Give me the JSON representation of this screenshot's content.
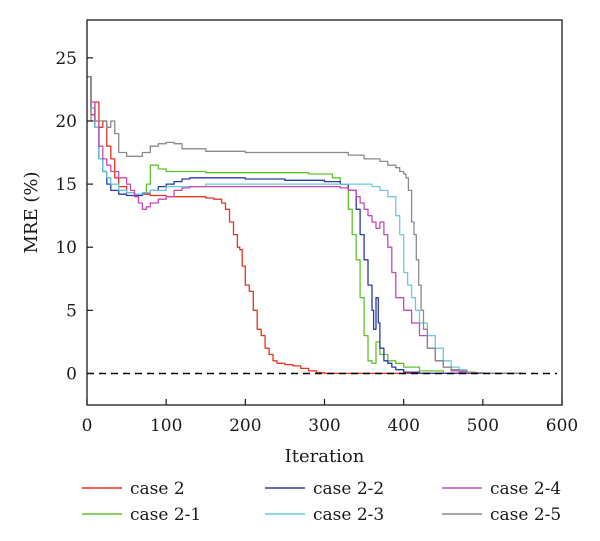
{
  "chart_data": {
    "type": "line",
    "xlabel": "Iteration",
    "ylabel": "MRE (%)",
    "xlim": [
      0,
      600
    ],
    "ylim": [
      -2.5,
      28
    ],
    "xticks": [
      0,
      100,
      200,
      300,
      400,
      500,
      600
    ],
    "yticks": [
      0,
      5,
      10,
      15,
      20,
      25
    ],
    "grid": false,
    "legend_position": "bottom",
    "reference_line": {
      "y": 0,
      "style": "dashed",
      "color": "#000000",
      "x_range": [
        0,
        600
      ]
    },
    "series": [
      {
        "name": "case 2",
        "color": "#e8321e",
        "x": [
          0,
          5,
          10,
          15,
          20,
          25,
          30,
          35,
          40,
          50,
          60,
          70,
          80,
          90,
          100,
          110,
          120,
          130,
          140,
          150,
          160,
          170,
          175,
          180,
          185,
          190,
          193,
          196,
          200,
          205,
          210,
          215,
          220,
          225,
          230,
          235,
          240,
          250,
          260,
          270,
          280,
          290,
          300,
          350,
          400,
          450,
          500,
          550
        ],
        "y": [
          23.5,
          20.5,
          21.5,
          19.5,
          20,
          18,
          17,
          15.5,
          14.8,
          14.3,
          14.2,
          14.2,
          14.1,
          14.1,
          14,
          14,
          14,
          14,
          14,
          13.9,
          13.8,
          13.5,
          13,
          12,
          11,
          10,
          9.8,
          8.5,
          7,
          6.5,
          5,
          3.5,
          3,
          2,
          1.5,
          1,
          0.8,
          0.7,
          0.6,
          0.4,
          0.2,
          0.05,
          0,
          0,
          0,
          0,
          0,
          0
        ]
      },
      {
        "name": "case 2-1",
        "color": "#5ec22d",
        "x": [
          0,
          5,
          10,
          15,
          20,
          25,
          30,
          40,
          50,
          60,
          70,
          75,
          80,
          90,
          100,
          120,
          150,
          200,
          250,
          280,
          300,
          310,
          320,
          330,
          335,
          340,
          345,
          350,
          355,
          360,
          365,
          370,
          380,
          390,
          400,
          420,
          450,
          500,
          550
        ],
        "y": [
          23.5,
          21,
          19.5,
          17,
          16,
          15.5,
          15,
          14.5,
          14.3,
          14.2,
          14.3,
          15,
          16.5,
          16.2,
          16,
          16,
          15.9,
          15.9,
          15.9,
          15.8,
          15.8,
          15.5,
          15,
          13,
          11,
          9,
          6,
          3,
          1,
          0.8,
          2.5,
          1.5,
          1,
          0.8,
          0.5,
          0.2,
          0,
          0,
          0
        ]
      },
      {
        "name": "case 2-2",
        "color": "#2b3aa8",
        "x": [
          0,
          5,
          10,
          15,
          20,
          25,
          30,
          40,
          50,
          60,
          70,
          80,
          90,
          100,
          110,
          120,
          130,
          140,
          150,
          200,
          250,
          300,
          320,
          330,
          340,
          345,
          350,
          355,
          360,
          362,
          365,
          368,
          370,
          375,
          380,
          385,
          390,
          400,
          420,
          450,
          500,
          550
        ],
        "y": [
          23.5,
          21,
          19.5,
          17,
          16,
          15,
          14.5,
          14.2,
          14.1,
          14.1,
          14.3,
          14.5,
          14.8,
          15,
          15.2,
          15.4,
          15.5,
          15.5,
          15.5,
          15.4,
          15.3,
          15.2,
          15,
          14.5,
          13,
          11,
          9,
          7,
          5,
          3.5,
          6,
          4,
          2,
          1,
          0.8,
          0.5,
          0.3,
          0.1,
          0,
          0,
          0,
          0
        ]
      },
      {
        "name": "case 2-3",
        "color": "#6bc9e0",
        "x": [
          0,
          5,
          10,
          15,
          20,
          25,
          30,
          40,
          50,
          60,
          70,
          80,
          100,
          150,
          200,
          250,
          300,
          340,
          360,
          370,
          380,
          390,
          395,
          400,
          405,
          410,
          415,
          420,
          430,
          440,
          450,
          460,
          470,
          480,
          490,
          500,
          550
        ],
        "y": [
          23.5,
          21,
          19.5,
          17,
          16,
          15.5,
          15,
          14.5,
          14.3,
          14.2,
          14.3,
          14.5,
          14.8,
          15,
          15,
          15,
          15,
          15,
          14.8,
          14.5,
          14,
          12.5,
          11,
          8,
          7,
          6,
          5,
          4,
          3,
          2,
          1,
          0.5,
          0.3,
          0.1,
          0.05,
          0,
          0
        ]
      },
      {
        "name": "case 2-4",
        "color": "#c84ab1",
        "x": [
          0,
          5,
          10,
          15,
          20,
          25,
          30,
          40,
          50,
          55,
          60,
          65,
          70,
          75,
          80,
          90,
          100,
          110,
          120,
          130,
          140,
          150,
          200,
          250,
          300,
          320,
          330,
          340,
          345,
          350,
          355,
          360,
          365,
          370,
          375,
          380,
          385,
          390,
          400,
          410,
          420,
          430,
          440,
          450,
          460,
          470,
          480,
          500,
          550
        ],
        "y": [
          23.5,
          21.5,
          20,
          18,
          17,
          16.5,
          16,
          15.5,
          15,
          14.5,
          14,
          13.5,
          13,
          13.2,
          13.5,
          13.8,
          14,
          14.5,
          14.7,
          14.8,
          14.8,
          14.8,
          14.8,
          14.8,
          14.8,
          14.7,
          14.5,
          14,
          13.5,
          13,
          12.5,
          12,
          11.5,
          12,
          11,
          10,
          8,
          6,
          5,
          4,
          3,
          2,
          1,
          0.5,
          0.2,
          0.1,
          0.05,
          0,
          0
        ]
      },
      {
        "name": "case 2-5",
        "color": "#8a8a8a",
        "x": [
          0,
          5,
          10,
          15,
          20,
          25,
          30,
          35,
          40,
          50,
          60,
          70,
          80,
          90,
          100,
          110,
          120,
          150,
          200,
          250,
          300,
          330,
          350,
          370,
          380,
          390,
          395,
          400,
          403,
          406,
          410,
          413,
          416,
          419,
          422,
          425,
          430,
          440,
          450,
          460,
          470,
          480,
          490,
          500,
          550
        ],
        "y": [
          23.5,
          20,
          20,
          20,
          20,
          19.5,
          20,
          19,
          17.5,
          17.2,
          17.2,
          17.5,
          18,
          18.2,
          18.3,
          18.2,
          17.8,
          17.6,
          17.5,
          17.5,
          17.5,
          17.3,
          17,
          16.8,
          16.5,
          16.3,
          16,
          15.8,
          15.5,
          14.5,
          12,
          11,
          9,
          7,
          5,
          3.5,
          2,
          1,
          0.5,
          0.3,
          0.2,
          0.1,
          0.05,
          0,
          0
        ]
      }
    ]
  }
}
